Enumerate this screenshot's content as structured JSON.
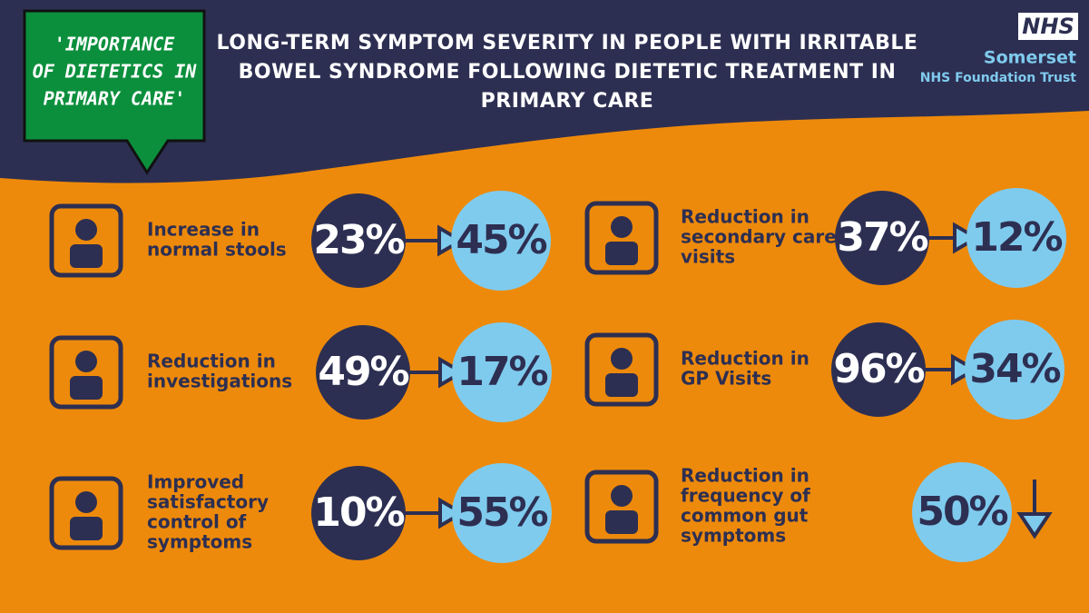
{
  "header": {
    "title_lines": [
      "LONG-TERM SYMPTOM SEVERITY IN PEOPLE WITH IRRITABLE",
      "BOWEL SYNDROME FOLLOWING DIETETIC TREATMENT IN",
      "PRIMARY CARE"
    ]
  },
  "callout": {
    "lines": [
      "'IMPORTANCE",
      "OF DIETETICS IN",
      "PRIMARY CARE'"
    ]
  },
  "logo": {
    "badge": "NHS",
    "name": "Somerset",
    "subtitle": "NHS Foundation Trust"
  },
  "items": [
    {
      "label_lines": [
        "Increase in",
        "normal stools"
      ],
      "before": "23%",
      "after": "45%"
    },
    {
      "label_lines": [
        "Reduction in",
        "secondary care",
        "visits"
      ],
      "before": "37%",
      "after": "12%"
    },
    {
      "label_lines": [
        "Reduction in",
        "investigations"
      ],
      "before": "49%",
      "after": "17%"
    },
    {
      "label_lines": [
        "Reduction in",
        "GP Visits"
      ],
      "before": "96%",
      "after": "34%"
    },
    {
      "label_lines": [
        "Improved",
        "satisfactory",
        "control of",
        "symptoms"
      ],
      "before": "10%",
      "after": "55%"
    },
    {
      "label_lines": [
        "Reduction in",
        "frequency of",
        "common gut",
        "symptoms"
      ],
      "change": "50%"
    }
  ]
}
